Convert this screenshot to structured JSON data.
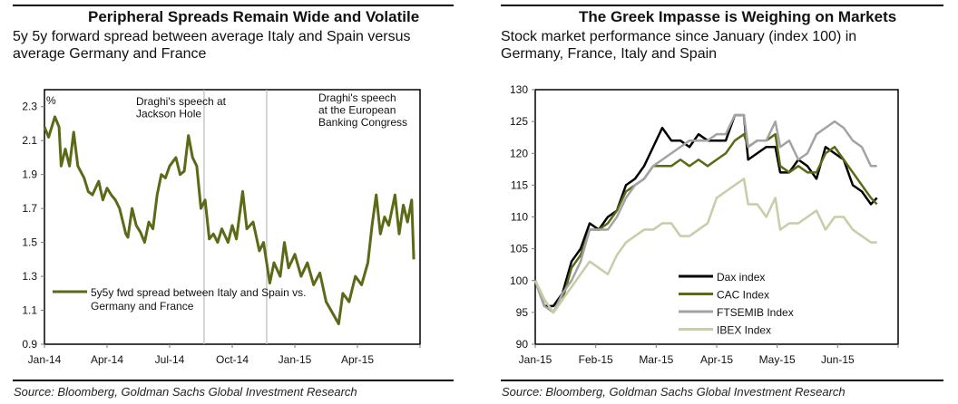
{
  "chart_data": [
    {
      "type": "line",
      "title": "Peripheral Spreads Remain Wide and Volatile",
      "subtitle": "5y 5y forward spread between average Italy and Spain versus average Germany and France",
      "ylabel": "%",
      "ylim": [
        0.9,
        2.4
      ],
      "xlim": [
        0,
        18
      ],
      "x_unit": "months since Jan-14",
      "yticks": [
        "0.9",
        "1.1",
        "1.3",
        "1.5",
        "1.7",
        "1.9",
        "2.1",
        "2.3"
      ],
      "xticks": [
        {
          "x": 0,
          "label": "Jan-14"
        },
        {
          "x": 3,
          "label": "Apr-14"
        },
        {
          "x": 6,
          "label": "Jul-14"
        },
        {
          "x": 9,
          "label": "Oct-14"
        },
        {
          "x": 12,
          "label": "Jan-15"
        },
        {
          "x": 15,
          "label": "Apr-15"
        }
      ],
      "annotations": [
        {
          "x": 7.65,
          "text": [
            "Draghi's speech at",
            "Jackson Hole"
          ]
        },
        {
          "x": 10.65,
          "text": [
            "Draghi's speech",
            "at the European",
            "Banking Congress"
          ]
        }
      ],
      "legend": {
        "position": "bottom-left",
        "label": [
          "5y5y fwd spread between Italy and Spain vs.",
          "Germany and France"
        ]
      },
      "series": [
        {
          "name": "5y5y fwd spread between Italy and Spain vs. Germany and France",
          "color": "#5b6a17",
          "x": [
            0,
            0.2,
            0.4,
            0.5,
            0.7,
            0.8,
            1.0,
            1.2,
            1.4,
            1.6,
            1.9,
            2.1,
            2.3,
            2.6,
            2.8,
            3.0,
            3.2,
            3.4,
            3.6,
            3.9,
            4.0,
            4.2,
            4.4,
            4.6,
            4.8,
            5.0,
            5.2,
            5.4,
            5.6,
            5.8,
            6.0,
            6.3,
            6.5,
            6.7,
            6.9,
            7.1,
            7.3,
            7.5,
            7.7,
            7.9,
            8.1,
            8.3,
            8.5,
            8.8,
            9.0,
            9.2,
            9.5,
            9.7,
            10.0,
            10.3,
            10.5,
            10.8,
            11.0,
            11.3,
            11.5,
            11.7,
            12.0,
            12.3,
            12.6,
            12.9,
            13.2,
            13.5,
            14.1,
            14.3,
            14.6,
            14.9,
            15.2,
            15.5,
            15.7,
            15.9,
            16.1,
            16.3,
            16.5,
            16.8,
            17.0,
            17.2,
            17.4,
            17.6,
            17.7
          ],
          "values": [
            2.18,
            2.12,
            2.2,
            2.24,
            2.18,
            1.95,
            2.05,
            1.95,
            2.15,
            1.95,
            1.88,
            1.8,
            1.78,
            1.86,
            1.75,
            1.82,
            1.78,
            1.75,
            1.7,
            1.55,
            1.53,
            1.7,
            1.6,
            1.56,
            1.5,
            1.62,
            1.58,
            1.78,
            1.9,
            1.88,
            1.95,
            2.0,
            1.9,
            1.92,
            2.13,
            2.0,
            1.95,
            1.7,
            1.75,
            1.52,
            1.55,
            1.5,
            1.58,
            1.5,
            1.6,
            1.52,
            1.8,
            1.58,
            1.62,
            1.45,
            1.5,
            1.26,
            1.38,
            1.3,
            1.5,
            1.35,
            1.43,
            1.3,
            1.38,
            1.25,
            1.32,
            1.15,
            1.02,
            1.2,
            1.15,
            1.3,
            1.25,
            1.38,
            1.6,
            1.78,
            1.55,
            1.65,
            1.6,
            1.78,
            1.55,
            1.72,
            1.62,
            1.75,
            1.4
          ]
        }
      ]
    },
    {
      "type": "line",
      "title": "The Greek Impasse is Weighing on Markets",
      "subtitle": "Stock market performance since January (index 100) in Germany, France, Italy and Spain",
      "ylim": [
        90,
        130
      ],
      "xlim": [
        0,
        6
      ],
      "x_unit": "months since Jan-15",
      "yticks": [
        "90",
        "95",
        "100",
        "105",
        "110",
        "115",
        "120",
        "125",
        "130"
      ],
      "xticks": [
        {
          "x": 0,
          "label": "Jan-15"
        },
        {
          "x": 1,
          "label": "Feb-15"
        },
        {
          "x": 2,
          "label": "Mar-15"
        },
        {
          "x": 3,
          "label": "Apr-15"
        },
        {
          "x": 4,
          "label": "May-15"
        },
        {
          "x": 5,
          "label": "Jun-15"
        }
      ],
      "legend": {
        "position": "bottom-center"
      },
      "x": [
        0,
        0.15,
        0.3,
        0.45,
        0.6,
        0.75,
        0.9,
        1.05,
        1.2,
        1.35,
        1.5,
        1.65,
        1.8,
        1.95,
        2.1,
        2.25,
        2.4,
        2.55,
        2.7,
        2.85,
        3.0,
        3.15,
        3.3,
        3.45,
        3.52,
        3.67,
        3.82,
        3.97,
        4.05,
        4.2,
        4.35,
        4.5,
        4.65,
        4.8,
        4.95,
        5.1,
        5.25,
        5.4,
        5.55,
        5.65
      ],
      "series": [
        {
          "name": "Dax index",
          "color": "#000000",
          "values": [
            100,
            96,
            96,
            98,
            103,
            105,
            109,
            108,
            110,
            111,
            115,
            116,
            118,
            121,
            124,
            122,
            122,
            121,
            123,
            122,
            122,
            122,
            126,
            126,
            119,
            120,
            121,
            121,
            117,
            117,
            119,
            118,
            116,
            121,
            120,
            119,
            115,
            114,
            112,
            113
          ]
        },
        {
          "name": "CAC Index",
          "color": "#5b6a14",
          "values": [
            100,
            97,
            95,
            97,
            102,
            104,
            108,
            108,
            109,
            111,
            114,
            115,
            116,
            118,
            118,
            118,
            119,
            118,
            119,
            118,
            119,
            120,
            122,
            123,
            121,
            122,
            122,
            123,
            118,
            117,
            118,
            117,
            117,
            120,
            121,
            119,
            117,
            115,
            113,
            112
          ]
        },
        {
          "name": "FTSEMIB Index",
          "color": "#a3a3a3",
          "values": [
            100,
            96,
            95,
            98,
            100,
            103,
            108,
            108,
            108,
            110,
            113,
            115,
            116,
            118,
            119,
            120,
            121,
            122,
            122,
            122,
            123,
            123,
            126,
            126,
            121,
            122,
            122,
            125,
            121,
            122,
            119,
            120,
            123,
            124,
            125,
            124,
            122,
            121,
            118,
            118
          ]
        },
        {
          "name": "IBEX Index",
          "color": "#c9cca6",
          "values": [
            100,
            97,
            95,
            97,
            99,
            101,
            103,
            102,
            101,
            104,
            106,
            107,
            108,
            108,
            109,
            109,
            107,
            107,
            108,
            109,
            113,
            114,
            115,
            116,
            112,
            112,
            110,
            113,
            108,
            109,
            109,
            110,
            111,
            108,
            110,
            110,
            108,
            107,
            106,
            106
          ]
        }
      ]
    }
  ],
  "source_left": "Source: Bloomberg, Goldman Sachs Global Investment Research",
  "source_right": "Source: Bloomberg, Goldman Sachs Global Investment Research"
}
